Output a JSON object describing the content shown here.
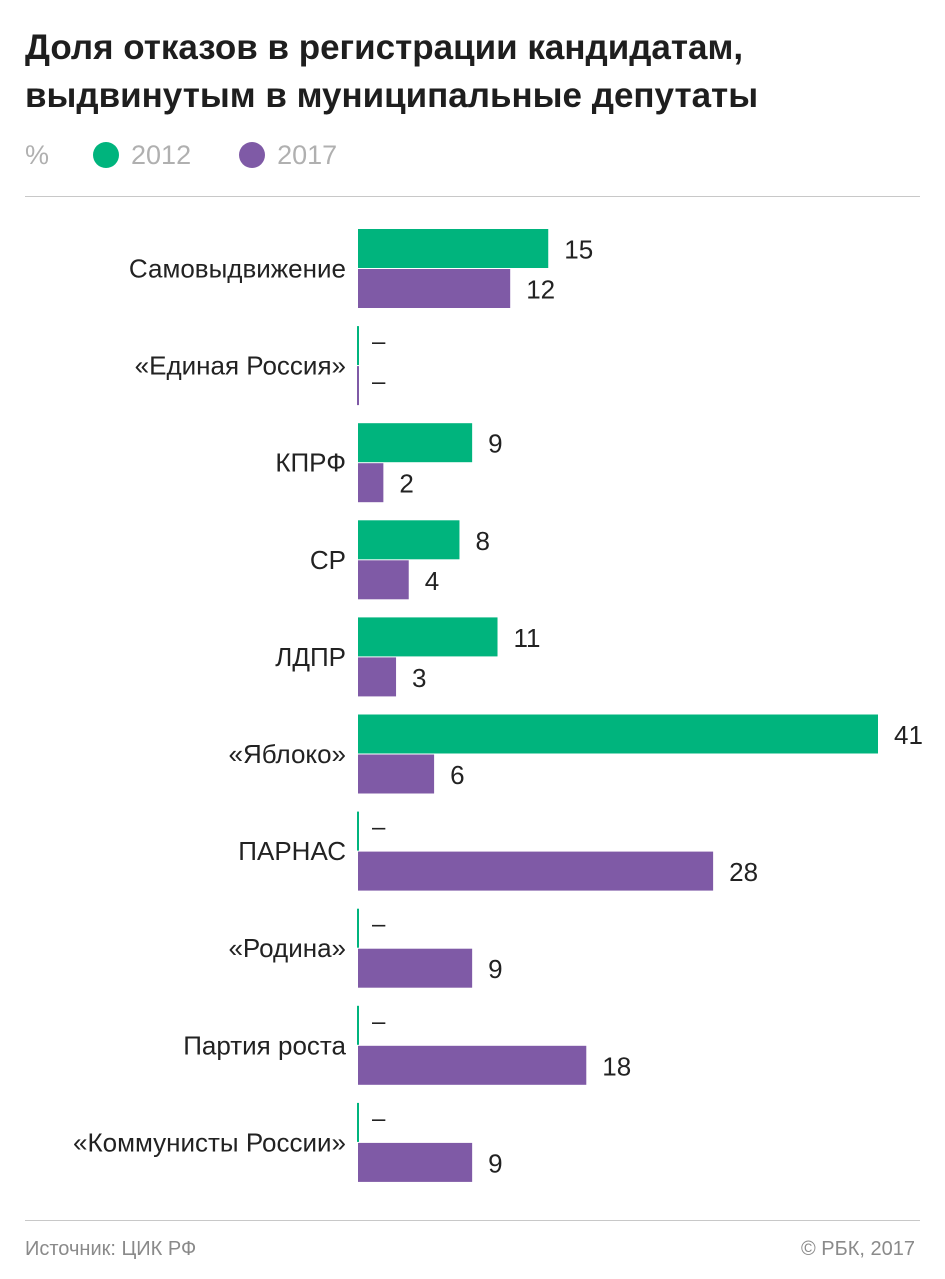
{
  "title": "Доля отказов в регистрации кандидатам, выдвинутым в муниципальные депутаты",
  "legend": {
    "unit": "%",
    "items": [
      {
        "label": "2012",
        "color": "#00b47d"
      },
      {
        "label": "2017",
        "color": "#7f5aa6"
      }
    ]
  },
  "chart_data": {
    "type": "bar",
    "orientation": "horizontal",
    "title": "Доля отказов в регистрации кандидатам, выдвинутым в муниципальные депутаты",
    "unit": "%",
    "categories": [
      "Самовыдвижение",
      "«Единая Россия»",
      "КПРФ",
      "СР",
      "ЛДПР",
      "«Яблоко»",
      "ПАРНАС",
      "«Родина»",
      "Партия роста",
      "«Коммунисты России»"
    ],
    "series": [
      {
        "name": "2012",
        "color": "#00b47d",
        "values": [
          15,
          null,
          9,
          8,
          11,
          41,
          null,
          null,
          null,
          null
        ]
      },
      {
        "name": "2017",
        "color": "#7f5aa6",
        "values": [
          12,
          null,
          2,
          4,
          3,
          6,
          28,
          9,
          18,
          9
        ]
      }
    ],
    "missing_label": "–",
    "xlim": [
      0,
      41
    ],
    "grid": false,
    "legend_position": "top-left"
  },
  "footer": {
    "source": "Источник: ЦИК РФ",
    "copyright": "© РБК, 2017"
  }
}
